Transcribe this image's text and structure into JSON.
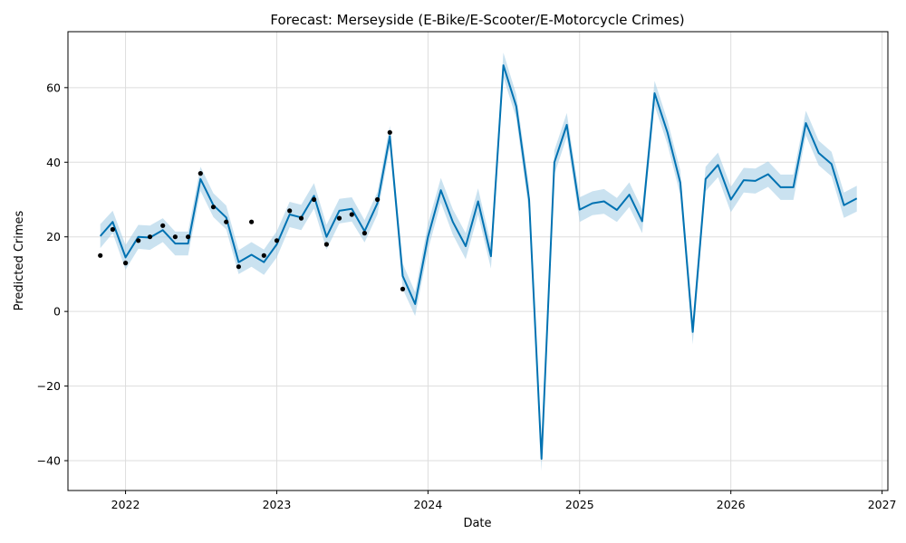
{
  "chart_data": {
    "type": "line",
    "title": "Forecast: Merseyside (E-Bike/E-Scooter/E-Motorcycle Crimes)",
    "xlabel": "Date",
    "ylabel": "Predicted Crimes",
    "xlim": [
      "2021-08-15",
      "2027-01-15"
    ],
    "ylim": [
      -48,
      75
    ],
    "x_ticks": [
      "2022",
      "2023",
      "2024",
      "2025",
      "2026",
      "2027"
    ],
    "y_ticks": [
      -40,
      -20,
      0,
      20,
      40,
      60
    ],
    "y_tick_labels": [
      "−40",
      "−20",
      "0",
      "20",
      "40",
      "60"
    ],
    "grid": true,
    "colors": {
      "forecast": "#0072b2",
      "interval": "#a6cfe6",
      "observed": "#000000",
      "grid": "#dddddd"
    },
    "series": [
      {
        "type": "line",
        "x": [
          "2021-11-01",
          "2021-12-01",
          "2022-01-01",
          "2022-02-01",
          "2022-03-01",
          "2022-04-01",
          "2022-05-01",
          "2022-06-01",
          "2022-07-01",
          "2022-08-01",
          "2022-09-01",
          "2022-10-01",
          "2022-11-01",
          "2022-12-01",
          "2023-01-01",
          "2023-02-01",
          "2023-03-01",
          "2023-04-01",
          "2023-05-01",
          "2023-06-01",
          "2023-07-01",
          "2023-08-01",
          "2023-09-01",
          "2023-10-01",
          "2023-11-01",
          "2023-12-01",
          "2024-01-01",
          "2024-02-01",
          "2024-03-01",
          "2024-04-01",
          "2024-05-01",
          "2024-06-01",
          "2024-07-01",
          "2024-08-01",
          "2024-09-01",
          "2024-10-01",
          "2024-11-01",
          "2024-12-01",
          "2025-01-01",
          "2025-02-01",
          "2025-03-01",
          "2025-04-01",
          "2025-05-01",
          "2025-06-01",
          "2025-07-01",
          "2025-08-01",
          "2025-09-01",
          "2025-10-01",
          "2025-11-01",
          "2025-12-01",
          "2026-01-01",
          "2026-02-01",
          "2026-03-01",
          "2026-04-01",
          "2026-05-01",
          "2026-06-01",
          "2026-07-01",
          "2026-08-01",
          "2026-09-01",
          "2026-10-01",
          "2026-11-01"
        ],
        "y": [
          20.2,
          24.0,
          14.5,
          20.0,
          19.8,
          21.8,
          18.2,
          18.2,
          35.5,
          28.5,
          25.2,
          13.2,
          15.2,
          13.2,
          18.0,
          26.0,
          25.2,
          31.0,
          20.0,
          27.0,
          27.5,
          21.5,
          29.0,
          47.0,
          9.5,
          2.0,
          20.0,
          32.5,
          24.0,
          17.5,
          29.5,
          14.8,
          66.0,
          55.0,
          30.0,
          -39.5,
          40.0,
          50.0,
          27.3,
          29.0,
          29.5,
          27.2,
          31.3,
          24.2,
          58.5,
          48.0,
          34.5,
          -5.5,
          35.5,
          39.3,
          30.0,
          35.2,
          35.0,
          36.8,
          33.3,
          33.3,
          50.5,
          42.5,
          39.5,
          28.5,
          30.3
        ]
      },
      {
        "type": "band",
        "x": [
          "2021-11-01",
          "2021-12-01",
          "2022-01-01",
          "2022-02-01",
          "2022-03-01",
          "2022-04-01",
          "2022-05-01",
          "2022-06-01",
          "2022-07-01",
          "2022-08-01",
          "2022-09-01",
          "2022-10-01",
          "2022-11-01",
          "2022-12-01",
          "2023-01-01",
          "2023-02-01",
          "2023-03-01",
          "2023-04-01",
          "2023-05-01",
          "2023-06-01",
          "2023-07-01",
          "2023-08-01",
          "2023-09-01",
          "2023-10-01",
          "2023-11-01",
          "2023-12-01",
          "2024-01-01",
          "2024-02-01",
          "2024-03-01",
          "2024-04-01",
          "2024-05-01",
          "2024-06-01",
          "2024-07-01",
          "2024-08-01",
          "2024-09-01",
          "2024-10-01",
          "2024-11-01",
          "2024-12-01",
          "2025-01-01",
          "2025-02-01",
          "2025-03-01",
          "2025-04-01",
          "2025-05-01",
          "2025-06-01",
          "2025-07-01",
          "2025-08-01",
          "2025-09-01",
          "2025-10-01",
          "2025-11-01",
          "2025-12-01",
          "2026-01-01",
          "2026-02-01",
          "2026-03-01",
          "2026-04-01",
          "2026-05-01",
          "2026-06-01",
          "2026-07-01",
          "2026-08-01",
          "2026-09-01",
          "2026-10-01",
          "2026-11-01"
        ],
        "lower": [
          17.0,
          21.0,
          11.2,
          16.8,
          16.5,
          18.6,
          15.0,
          15.0,
          32.3,
          25.3,
          22.0,
          10.0,
          12.0,
          9.8,
          14.5,
          22.6,
          21.8,
          27.6,
          16.6,
          23.6,
          24.1,
          18.5,
          26.0,
          44.2,
          6.0,
          -1.2,
          16.5,
          29.2,
          20.6,
          14.0,
          26.0,
          11.5,
          62.8,
          51.8,
          26.5,
          -42.8,
          36.8,
          46.8,
          24.0,
          25.8,
          26.2,
          24.0,
          28.0,
          21.0,
          55.2,
          44.8,
          31.2,
          -8.8,
          32.2,
          36.0,
          26.6,
          31.9,
          31.6,
          33.4,
          29.9,
          29.9,
          47.2,
          39.2,
          36.2,
          25.1,
          26.8
        ],
        "upper": [
          23.4,
          27.0,
          17.8,
          23.2,
          23.0,
          25.0,
          21.4,
          21.4,
          38.8,
          31.7,
          28.4,
          16.4,
          18.6,
          16.6,
          21.5,
          29.4,
          28.6,
          34.4,
          23.2,
          30.2,
          30.6,
          24.5,
          32.0,
          49.8,
          12.8,
          5.2,
          23.5,
          35.8,
          27.4,
          21.0,
          33.0,
          18.1,
          69.4,
          58.2,
          33.5,
          -36.2,
          43.2,
          53.2,
          30.6,
          32.2,
          32.8,
          30.4,
          34.6,
          27.4,
          61.8,
          51.2,
          37.8,
          -2.2,
          38.8,
          42.6,
          33.4,
          38.5,
          38.3,
          40.2,
          36.7,
          36.7,
          53.8,
          45.8,
          42.8,
          31.9,
          33.7
        ]
      },
      {
        "type": "scatter",
        "x": [
          "2021-11-01",
          "2021-12-01",
          "2022-01-01",
          "2022-02-01",
          "2022-03-01",
          "2022-04-01",
          "2022-05-01",
          "2022-06-01",
          "2022-07-01",
          "2022-08-01",
          "2022-09-01",
          "2022-10-01",
          "2022-11-01",
          "2022-12-01",
          "2023-01-01",
          "2023-02-01",
          "2023-03-01",
          "2023-04-01",
          "2023-05-01",
          "2023-06-01",
          "2023-07-01",
          "2023-08-01",
          "2023-09-01",
          "2023-10-01",
          "2023-11-01"
        ],
        "y": [
          15,
          22,
          13,
          19,
          20,
          23,
          20,
          20,
          37,
          28,
          24,
          12,
          24,
          15,
          19,
          27,
          25,
          30,
          18,
          25,
          26,
          21,
          30,
          48,
          6
        ]
      }
    ]
  }
}
